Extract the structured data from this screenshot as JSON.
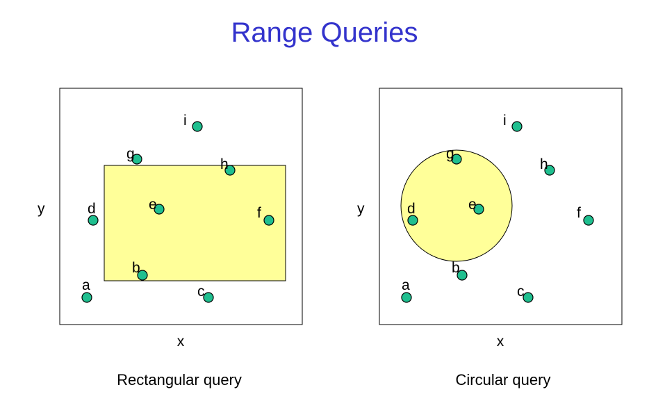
{
  "title": "Range Queries",
  "colors": {
    "title": "#3333cc",
    "point": "#1fbf8f",
    "query_region": "#ffff99"
  },
  "panels": [
    {
      "id": "rect",
      "query_shape": "rectangle",
      "x_label": "x",
      "y_label": "y",
      "caption": "Rectangular query",
      "points": [
        {
          "label": "a"
        },
        {
          "label": "b"
        },
        {
          "label": "c"
        },
        {
          "label": "d"
        },
        {
          "label": "e"
        },
        {
          "label": "f"
        },
        {
          "label": "g"
        },
        {
          "label": "h"
        },
        {
          "label": "i"
        }
      ]
    },
    {
      "id": "circ",
      "query_shape": "circle",
      "x_label": "x",
      "y_label": "y",
      "caption": "Circular query",
      "points": [
        {
          "label": "a"
        },
        {
          "label": "b"
        },
        {
          "label": "c"
        },
        {
          "label": "d"
        },
        {
          "label": "e"
        },
        {
          "label": "f"
        },
        {
          "label": "g"
        },
        {
          "label": "h"
        },
        {
          "label": "i"
        }
      ]
    }
  ]
}
